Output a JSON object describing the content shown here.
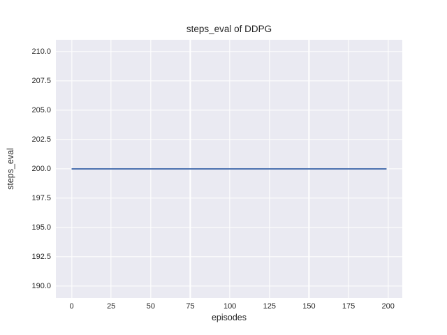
{
  "chart_data": {
    "type": "line",
    "title": "steps_eval of DDPG",
    "xlabel": "episodes",
    "ylabel": "steps_eval",
    "xlim": [
      -9.95,
      208.95
    ],
    "ylim": [
      189.0,
      211.0
    ],
    "xtick_values": [
      0,
      25,
      50,
      75,
      100,
      125,
      150,
      175,
      200
    ],
    "xtick_labels": [
      "0",
      "25",
      "50",
      "75",
      "100",
      "125",
      "150",
      "175",
      "200"
    ],
    "ytick_values": [
      190.0,
      192.5,
      195.0,
      197.5,
      200.0,
      202.5,
      205.0,
      207.5,
      210.0
    ],
    "ytick_labels": [
      "190.0",
      "192.5",
      "195.0",
      "197.5",
      "200.0",
      "202.5",
      "205.0",
      "207.5",
      "210.0"
    ],
    "grid": true,
    "legend": "none",
    "series": [
      {
        "name": "steps_eval",
        "color": "#4c72b0",
        "constant_value": 200.0,
        "x": [
          0,
          199
        ],
        "y": [
          200.0,
          200.0
        ]
      }
    ],
    "colors": {
      "figure_background": "#ffffff",
      "plot_background": "#eaeaf2",
      "grid_color": "#ffffff",
      "text_color": "#262626"
    }
  }
}
